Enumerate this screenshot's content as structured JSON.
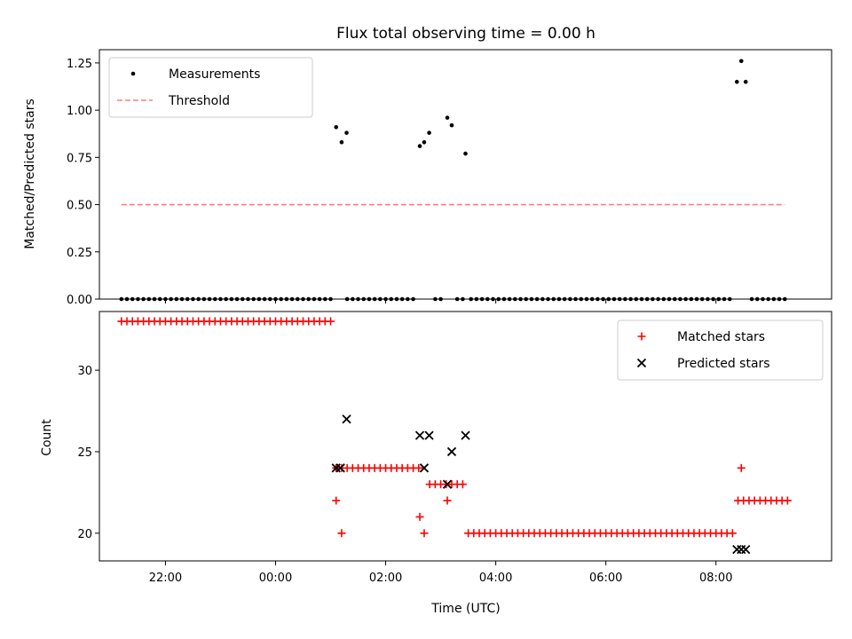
{
  "chart_data": [
    {
      "type": "scatter",
      "title": "Flux total observing time = 0.00 h",
      "xlabel": "",
      "ylabel": "Matched/Predicted stars",
      "ylim": [
        0,
        1.32
      ],
      "yticks": [
        0,
        0.25,
        0.5,
        0.75,
        1.0,
        1.25
      ],
      "ytick_labels": [
        "0.00",
        "0.25",
        "0.50",
        "0.75",
        "1.00",
        "1.25"
      ],
      "xlim": [
        -3.2,
        10.1
      ],
      "xticks": [
        -2,
        0,
        2,
        4,
        6,
        8
      ],
      "xtick_labels": [
        "",
        "",
        "",
        "",
        "",
        ""
      ],
      "legend": "top-left",
      "series": [
        {
          "name": "Measurements",
          "kind": "points",
          "color": "#000000",
          "groups": [
            {
              "from": -2.8,
              "to": 1.0,
              "step": 0.1,
              "y": 0
            },
            {
              "from": 1.3,
              "to": 2.5,
              "step": 0.1,
              "y": 0
            },
            {
              "from": 2.9,
              "to": 3.0,
              "step": 0.1,
              "y": 0
            },
            {
              "from": 3.3,
              "to": 3.4,
              "step": 0.1,
              "y": 0
            },
            {
              "from": 3.55,
              "to": 8.25,
              "step": 0.1,
              "y": 0
            },
            {
              "from": 8.65,
              "to": 9.25,
              "step": 0.1,
              "y": 0
            }
          ],
          "points": [
            {
              "x": 1.1,
              "y": 0.91
            },
            {
              "x": 1.2,
              "y": 0.83
            },
            {
              "x": 1.29,
              "y": 0.88
            },
            {
              "x": 2.62,
              "y": 0.81
            },
            {
              "x": 2.7,
              "y": 0.83
            },
            {
              "x": 2.79,
              "y": 0.88
            },
            {
              "x": 3.12,
              "y": 0.96
            },
            {
              "x": 3.2,
              "y": 0.92
            },
            {
              "x": 3.45,
              "y": 0.77
            },
            {
              "x": 8.38,
              "y": 1.15
            },
            {
              "x": 8.46,
              "y": 1.26
            },
            {
              "x": 8.54,
              "y": 1.15
            }
          ]
        },
        {
          "name": "Threshold",
          "kind": "dashed-line",
          "color": "#ff7f7f",
          "x": [
            -2.8,
            9.25
          ],
          "y": [
            0.5,
            0.5
          ]
        }
      ]
    },
    {
      "type": "scatter",
      "title": "",
      "xlabel": "Time (UTC)",
      "ylabel": "Count",
      "ylim": [
        18.3,
        33.6
      ],
      "yticks": [
        20,
        25,
        30
      ],
      "ytick_labels": [
        "20",
        "25",
        "30"
      ],
      "xlim": [
        -3.2,
        10.1
      ],
      "xticks": [
        -2,
        0,
        2,
        4,
        6,
        8
      ],
      "xtick_labels": [
        "22:00",
        "00:00",
        "02:00",
        "04:00",
        "06:00",
        "08:00"
      ],
      "legend": "top-right",
      "series": [
        {
          "name": "Matched stars",
          "kind": "plus",
          "color": "#ff0000",
          "groups": [
            {
              "from": -2.8,
              "to": 1.0,
              "step": 0.1,
              "y": 33
            },
            {
              "from": 1.2,
              "to": 2.6,
              "step": 0.1,
              "y": 24
            },
            {
              "from": 2.8,
              "to": 3.4,
              "step": 0.1,
              "y": 23
            },
            {
              "from": 3.5,
              "to": 8.3,
              "step": 0.1,
              "y": 20
            },
            {
              "from": 8.4,
              "to": 9.3,
              "step": 0.1,
              "y": 22
            }
          ],
          "points": [
            {
              "x": 1.1,
              "y": 22
            },
            {
              "x": 1.2,
              "y": 20
            },
            {
              "x": 1.1,
              "y": 24
            },
            {
              "x": 2.62,
              "y": 21
            },
            {
              "x": 2.7,
              "y": 20
            },
            {
              "x": 3.12,
              "y": 22
            },
            {
              "x": 8.46,
              "y": 24
            }
          ]
        },
        {
          "name": "Predicted stars",
          "kind": "cross",
          "color": "#000000",
          "points": [
            {
              "x": 1.1,
              "y": 24
            },
            {
              "x": 1.18,
              "y": 24
            },
            {
              "x": 1.29,
              "y": 27
            },
            {
              "x": 2.62,
              "y": 26
            },
            {
              "x": 2.7,
              "y": 24
            },
            {
              "x": 2.79,
              "y": 26
            },
            {
              "x": 3.12,
              "y": 23
            },
            {
              "x": 3.2,
              "y": 25
            },
            {
              "x": 3.45,
              "y": 26
            },
            {
              "x": 8.38,
              "y": 19
            },
            {
              "x": 8.46,
              "y": 19
            },
            {
              "x": 8.54,
              "y": 19
            }
          ]
        }
      ]
    }
  ]
}
